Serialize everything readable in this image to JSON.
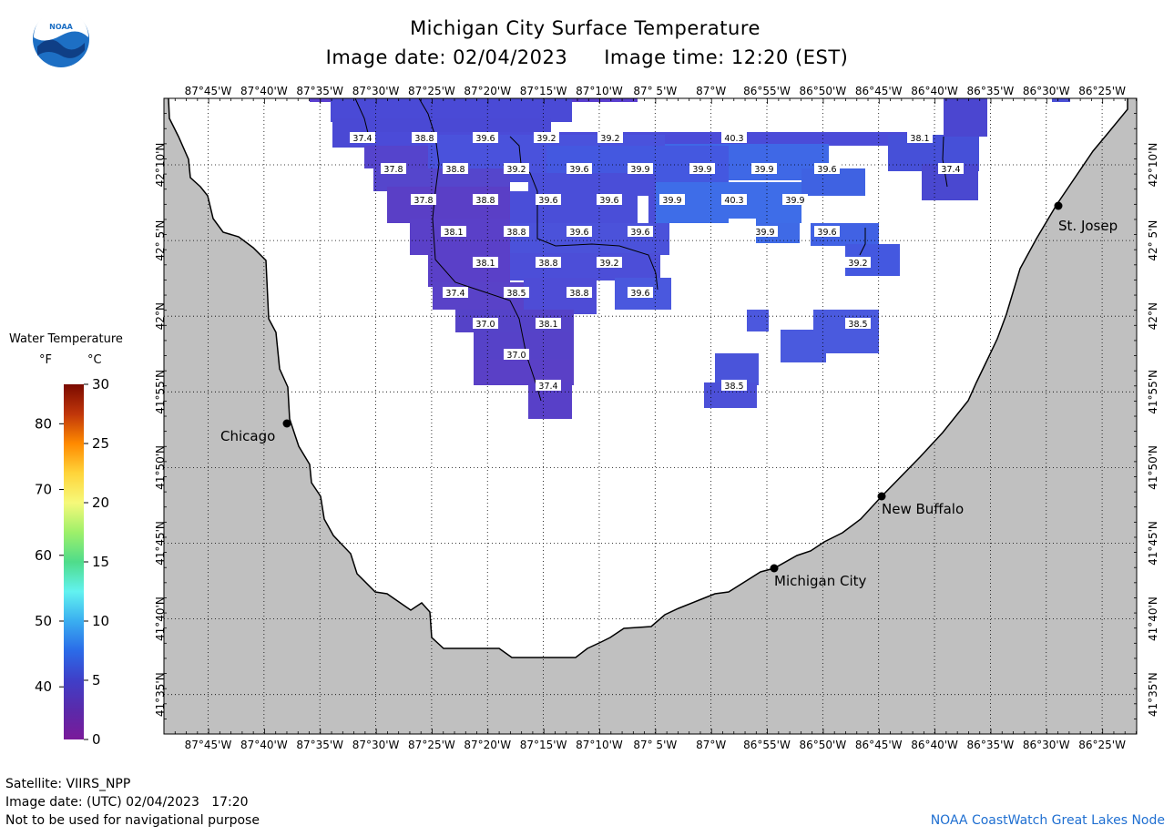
{
  "header": {
    "title": "Michigan City Surface Temperature",
    "image_date": "Image date: 02/04/2023",
    "image_time": "Image time: 12:20 (EST)"
  },
  "map": {
    "lon_labels": [
      "87°45'W",
      "87°40'W",
      "87°35'W",
      "87°30'W",
      "87°25'W",
      "87°20'W",
      "87°15'W",
      "87°10'W",
      "87° 5'W",
      "87°W",
      "86°55'W",
      "86°50'W",
      "86°45'W",
      "86°40'W",
      "86°35'W",
      "86°30'W",
      "86°25'W"
    ],
    "lat_labels": [
      "42°10'N",
      "42° 5'N",
      "42°N",
      "41°55'N",
      "41°50'N",
      "41°45'N",
      "41°40'N",
      "41°35'N"
    ],
    "land_color": "#c0c0c0",
    "water_color": "#ffffff",
    "cities": [
      {
        "name": "Chicago"
      },
      {
        "name": "Michigan City"
      },
      {
        "name": "New Buffalo"
      },
      {
        "name": "St. Josep"
      }
    ],
    "temperature_labels": [
      "37.4",
      "38.8",
      "39.6",
      "39.2",
      "39.2",
      "40.3",
      "38.1",
      "37.8",
      "38.8",
      "39.2",
      "39.6",
      "39.9",
      "39.9",
      "39.9",
      "39.6",
      "37.4",
      "37.8",
      "38.8",
      "39.6",
      "39.6",
      "39.9",
      "40.3",
      "39.9",
      "38.1",
      "38.8",
      "39.6",
      "39.6",
      "39.9",
      "39.6",
      "38.1",
      "38.8",
      "39.2",
      "39.2",
      "37.4",
      "38.5",
      "38.8",
      "39.6",
      "37.0",
      "38.1",
      "38.5",
      "37.0",
      "37.4",
      "38.5"
    ]
  },
  "legend": {
    "title": "Water Temperature",
    "unit_f": "°F",
    "unit_c": "°C",
    "f_ticks": [
      "80",
      "70",
      "60",
      "50",
      "40"
    ],
    "c_ticks": [
      "30",
      "25",
      "20",
      "15",
      "10",
      "5",
      "0"
    ],
    "gradient": [
      "#7a0a00",
      "#c0360a",
      "#ff8a00",
      "#ffd43a",
      "#f6f97a",
      "#9ef06a",
      "#4fdc8a",
      "#62f2f0",
      "#3aaef0",
      "#2b6be8",
      "#3f3fc8",
      "#5a2aaa",
      "#7a1a9a"
    ]
  },
  "footer": {
    "satellite": "Satellite: VIIRS_NPP",
    "utc_date": "Image date: (UTC) 02/04/2023   17:20",
    "warning": "Not to be used for navigational purpose",
    "credit": "NOAA CoastWatch Great Lakes Node"
  },
  "logo": {
    "text": "NOAA"
  }
}
